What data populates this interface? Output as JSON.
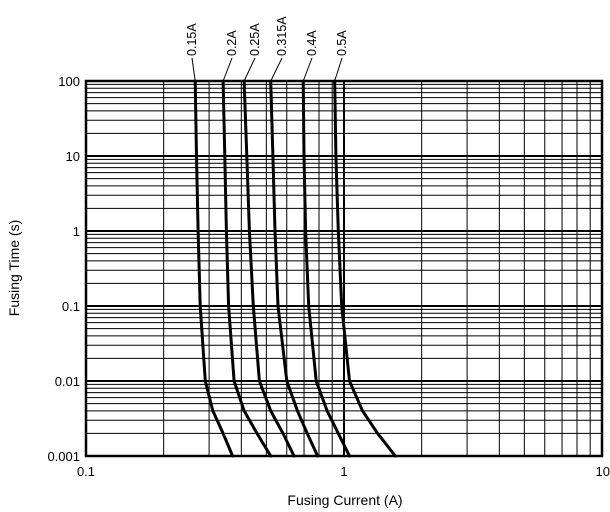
{
  "chart_data": {
    "type": "line",
    "title": "",
    "xlabel": "Fusing Current (A)",
    "ylabel": "Fusing Time (s)",
    "x_scale": "log",
    "y_scale": "log",
    "xlim": [
      0.1,
      10
    ],
    "ylim": [
      0.001,
      100
    ],
    "grid": true,
    "x_tick_labels": [
      "0.1",
      "1",
      "10"
    ],
    "y_tick_labels": [
      "0.001",
      "0.01",
      "0.1",
      "1",
      "10",
      "100"
    ],
    "series": [
      {
        "name": "0.15A",
        "points": [
          [
            0.265,
            100
          ],
          [
            0.268,
            10
          ],
          [
            0.272,
            1
          ],
          [
            0.277,
            0.1
          ],
          [
            0.29,
            0.01
          ],
          [
            0.31,
            0.004
          ],
          [
            0.34,
            0.002
          ],
          [
            0.37,
            0.001
          ]
        ]
      },
      {
        "name": "0.2A",
        "points": [
          [
            0.34,
            100
          ],
          [
            0.345,
            10
          ],
          [
            0.35,
            1
          ],
          [
            0.357,
            0.1
          ],
          [
            0.375,
            0.01
          ],
          [
            0.41,
            0.004
          ],
          [
            0.46,
            0.002
          ],
          [
            0.52,
            0.001
          ]
        ]
      },
      {
        "name": "0.25A",
        "points": [
          [
            0.41,
            100
          ],
          [
            0.42,
            10
          ],
          [
            0.43,
            1
          ],
          [
            0.445,
            0.1
          ],
          [
            0.47,
            0.01
          ],
          [
            0.52,
            0.004
          ],
          [
            0.58,
            0.002
          ],
          [
            0.64,
            0.001
          ]
        ]
      },
      {
        "name": "0.315A",
        "points": [
          [
            0.52,
            100
          ],
          [
            0.53,
            10
          ],
          [
            0.54,
            1
          ],
          [
            0.555,
            0.1
          ],
          [
            0.6,
            0.01
          ],
          [
            0.66,
            0.004
          ],
          [
            0.72,
            0.002
          ],
          [
            0.79,
            0.001
          ]
        ]
      },
      {
        "name": "0.4A",
        "points": [
          [
            0.695,
            100
          ],
          [
            0.7,
            10
          ],
          [
            0.71,
            1
          ],
          [
            0.73,
            0.1
          ],
          [
            0.78,
            0.01
          ],
          [
            0.86,
            0.004
          ],
          [
            0.95,
            0.002
          ],
          [
            1.05,
            0.001
          ]
        ]
      },
      {
        "name": "0.5A",
        "points": [
          [
            0.92,
            100
          ],
          [
            0.93,
            10
          ],
          [
            0.95,
            1
          ],
          [
            0.98,
            0.1
          ],
          [
            1.05,
            0.01
          ],
          [
            1.18,
            0.004
          ],
          [
            1.35,
            0.002
          ],
          [
            1.58,
            0.001
          ]
        ]
      }
    ]
  }
}
